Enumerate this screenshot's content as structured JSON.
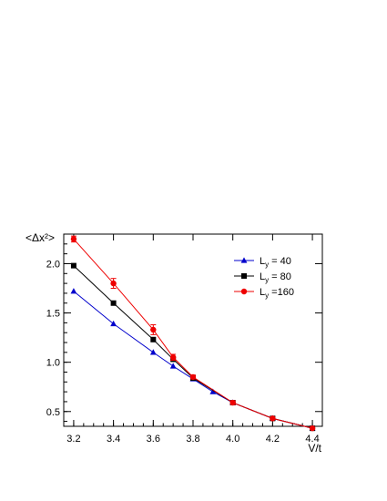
{
  "chart_data": {
    "type": "line",
    "xlabel": "V/t",
    "ylabel": "<Δx²>",
    "xlim": [
      3.15,
      4.45
    ],
    "ylim": [
      0.35,
      2.3
    ],
    "x_ticks": [
      3.2,
      3.4,
      3.6,
      3.8,
      4.0,
      4.2,
      4.4
    ],
    "x_tick_labels": [
      "3.2",
      "3.4",
      "3.6",
      "3.8",
      "4.0",
      "4.2",
      "4.4"
    ],
    "y_ticks": [
      0.5,
      1.0,
      1.5,
      2.0
    ],
    "y_tick_labels": [
      "0.5",
      "1.0",
      "1.5",
      "2.0"
    ],
    "legend_position": "top-right",
    "grid": false,
    "series": [
      {
        "name": "L_y = 40",
        "name_parts": {
          "base": "L",
          "sub": "y",
          "rest": " = 40"
        },
        "color": "#0000cc",
        "marker": "triangle",
        "x": [
          3.2,
          3.4,
          3.6,
          3.7,
          3.8,
          3.9,
          4.0,
          4.2,
          4.4
        ],
        "y": [
          1.72,
          1.39,
          1.1,
          0.96,
          0.83,
          0.7,
          0.59,
          0.43,
          0.33
        ],
        "err": [
          0.0,
          0.0,
          0.0,
          0.0,
          0.0,
          0.0,
          0.0,
          0.0,
          0.0
        ]
      },
      {
        "name": "L_y = 80",
        "name_parts": {
          "base": "L",
          "sub": "y",
          "rest": " = 80"
        },
        "color": "#000000",
        "marker": "square",
        "x": [
          3.2,
          3.4,
          3.6,
          3.7,
          3.8,
          4.0,
          4.2,
          4.4
        ],
        "y": [
          1.98,
          1.6,
          1.23,
          1.03,
          0.84,
          0.59,
          0.43,
          0.33
        ],
        "err": [
          0.0,
          0.0,
          0.0,
          0.0,
          0.0,
          0.0,
          0.0,
          0.0
        ]
      },
      {
        "name": "L_y =160",
        "name_parts": {
          "base": "L",
          "sub": "y",
          "rest": " =160"
        },
        "color": "#ee0000",
        "marker": "circle",
        "x": [
          3.2,
          3.4,
          3.6,
          3.7,
          3.8,
          4.0,
          4.2,
          4.4
        ],
        "y": [
          2.25,
          1.8,
          1.33,
          1.05,
          0.85,
          0.59,
          0.43,
          0.33
        ],
        "err": [
          0.03,
          0.05,
          0.05,
          0.03,
          0.02,
          0.02,
          0.01,
          0.01
        ]
      }
    ]
  }
}
